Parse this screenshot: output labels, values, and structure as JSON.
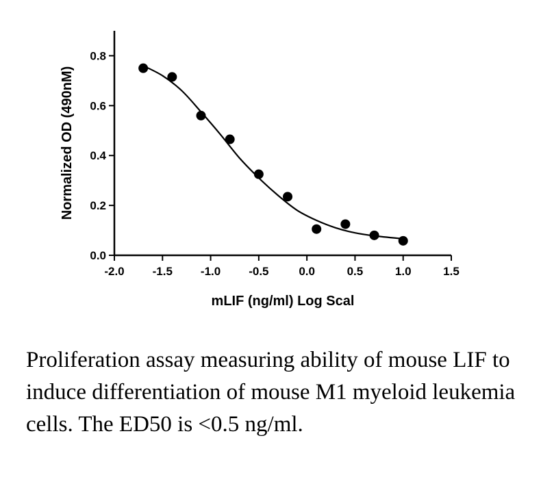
{
  "chart_data": {
    "type": "scatter",
    "xlabel": "mLIF (ng/ml) Log Scal",
    "ylabel": "Normalized OD (490nM)",
    "xlim": [
      -2.0,
      1.5
    ],
    "ylim": [
      0.0,
      0.9
    ],
    "x_ticks": [
      -2.0,
      -1.5,
      -1.0,
      -0.5,
      0.0,
      0.5,
      1.0,
      1.5
    ],
    "x_tick_labels": [
      "-2.0",
      "-1.5",
      "-1.0",
      "-0.5",
      "0.0",
      "0.5",
      "1.0",
      "1.5"
    ],
    "y_ticks": [
      0.0,
      0.2,
      0.4,
      0.6,
      0.8
    ],
    "y_tick_labels": [
      "0.0",
      "0.2",
      "0.4",
      "0.6",
      "0.8"
    ],
    "series": [
      {
        "points": [
          {
            "x": -1.7,
            "y": 0.75
          },
          {
            "x": -1.4,
            "y": 0.715
          },
          {
            "x": -1.1,
            "y": 0.56
          },
          {
            "x": -0.8,
            "y": 0.465
          },
          {
            "x": -0.5,
            "y": 0.325
          },
          {
            "x": -0.2,
            "y": 0.235
          },
          {
            "x": 0.1,
            "y": 0.105
          },
          {
            "x": 0.4,
            "y": 0.125
          },
          {
            "x": 0.7,
            "y": 0.08
          },
          {
            "x": 1.0,
            "y": 0.058
          }
        ]
      }
    ],
    "fit_curve": {
      "type": "sigmoid",
      "points": [
        {
          "x": -1.7,
          "y": 0.76
        },
        {
          "x": -1.5,
          "y": 0.72
        },
        {
          "x": -1.3,
          "y": 0.66
        },
        {
          "x": -1.1,
          "y": 0.575
        },
        {
          "x": -0.9,
          "y": 0.485
        },
        {
          "x": -0.7,
          "y": 0.39
        },
        {
          "x": -0.5,
          "y": 0.31
        },
        {
          "x": -0.3,
          "y": 0.24
        },
        {
          "x": -0.1,
          "y": 0.18
        },
        {
          "x": 0.1,
          "y": 0.14
        },
        {
          "x": 0.3,
          "y": 0.11
        },
        {
          "x": 0.5,
          "y": 0.09
        },
        {
          "x": 0.7,
          "y": 0.078
        },
        {
          "x": 1.0,
          "y": 0.066
        }
      ]
    },
    "grid": false,
    "legend": "none"
  },
  "caption": "Proliferation assay measuring ability of mouse LIF to induce differentiation of mouse M1 myeloid leukemia cells.  The ED50 is <0.5 ng/ml.",
  "colors": {
    "ink": "#000000",
    "background": "#ffffff"
  }
}
